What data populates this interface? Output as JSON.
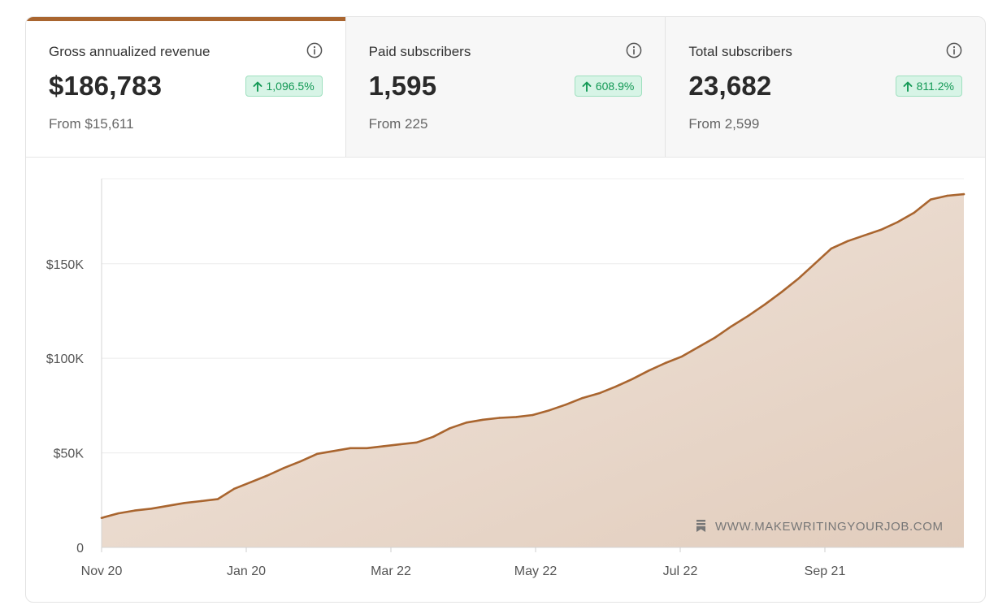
{
  "stats": [
    {
      "label": "Gross annualized revenue",
      "value": "$186,783",
      "change": "1,096.5%",
      "from": "From $15,611",
      "active": true
    },
    {
      "label": "Paid subscribers",
      "value": "1,595",
      "change": "608.9%",
      "from": "From 225",
      "active": false
    },
    {
      "label": "Total subscribers",
      "value": "23,682",
      "change": "811.2%",
      "from": "From 2,599",
      "active": false
    }
  ],
  "colors": {
    "accent": "#a9652f",
    "fill": "#e8d7c9",
    "badge_bg": "#d7f4e6",
    "badge_text": "#139955"
  },
  "watermark": "WWW.MAKEWRITINGYOURJOB.COM",
  "chart_data": {
    "type": "area",
    "title": "",
    "xlabel": "",
    "ylabel": "",
    "x_ticks": [
      "Nov 20",
      "Jan 20",
      "Mar 22",
      "May 22",
      "Jul 22",
      "Sep 21"
    ],
    "y_ticks": [
      {
        "value": 0,
        "label": "0"
      },
      {
        "value": 50000,
        "label": "$50K"
      },
      {
        "value": 100000,
        "label": "$100K"
      },
      {
        "value": 150000,
        "label": "$150K"
      }
    ],
    "ylim": [
      0,
      195000
    ],
    "grid": true,
    "series": [
      {
        "values": [
          15600,
          18000,
          19500,
          20500,
          22000,
          23500,
          24500,
          25500,
          31000,
          34500,
          38000,
          42000,
          45500,
          49500,
          51000,
          52500,
          52500,
          53500,
          54500,
          55500,
          58500,
          63000,
          66000,
          67500,
          68500,
          69000,
          70000,
          72500,
          75500,
          79000,
          81500,
          85000,
          89000,
          93500,
          97500,
          101000,
          106000,
          111000,
          117000,
          122500,
          128500,
          135000,
          142000,
          150000,
          158000,
          162000,
          165000,
          168000,
          172000,
          177000,
          184000,
          186000,
          186783
        ]
      }
    ]
  }
}
